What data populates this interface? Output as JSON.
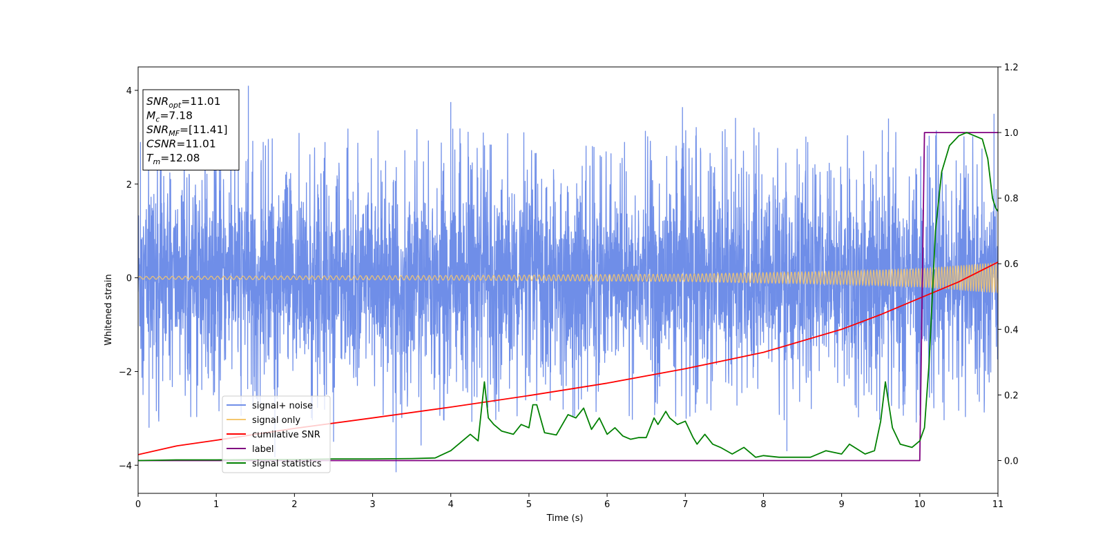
{
  "chart_data": {
    "type": "line",
    "xlabel": "Time (s)",
    "ylabel": "Whitened strain",
    "xlim": [
      0,
      11
    ],
    "ylim_left": [
      -4.6,
      4.5
    ],
    "ylim_right": [
      -0.1,
      1.2
    ],
    "x_ticks": [
      "0",
      "1",
      "2",
      "3",
      "4",
      "5",
      "6",
      "7",
      "8",
      "9",
      "10",
      "11"
    ],
    "y_ticks_left": [
      "4",
      "2",
      "0",
      "−2",
      "−4"
    ],
    "y_ticks_right": [
      "1.2",
      "1.0",
      "0.8",
      "0.6",
      "0.4",
      "0.2",
      "0.0"
    ],
    "grid": false,
    "legend_position": "lower-left",
    "info_box": {
      "position": "top-left",
      "lines": [
        {
          "sym": "SNR",
          "sub": "opt",
          "rest": "=11.01"
        },
        {
          "sym": "M",
          "sub": "c",
          "rest": "=7.18"
        },
        {
          "sym": "SNR",
          "sub": "MF",
          "rest": "=[11.41]"
        },
        {
          "sym": "CSNR",
          "sub": "",
          "rest": "=11.01"
        },
        {
          "sym": "T",
          "sub": "m",
          "rest": "=12.08"
        }
      ]
    },
    "series": [
      {
        "name": "signal+ noise",
        "axis": "left",
        "color": "#6f8ee8",
        "note": "dense noisy strain, roughly within -2 to +2.5 with spikes",
        "typical_range": [
          -2.2,
          2.3
        ],
        "spikes": [
          [
            1.41,
            4.1
          ],
          [
            3.3,
            -4.15
          ],
          [
            0.03,
            2.9
          ],
          [
            0.14,
            -3.2
          ],
          [
            1.6,
            2.9
          ],
          [
            4.0,
            3.75
          ],
          [
            8.3,
            -3.7
          ],
          [
            9.6,
            3.4
          ],
          [
            10.95,
            3.5
          ],
          [
            2.5,
            -3.5
          ]
        ]
      },
      {
        "name": "signal only",
        "axis": "left",
        "color": "#f5c76e",
        "note": "chirp whose envelope grows toward the merger",
        "envelope": [
          [
            0,
            0.03
          ],
          [
            4,
            0.05
          ],
          [
            7,
            0.08
          ],
          [
            9,
            0.14
          ],
          [
            10,
            0.2
          ],
          [
            11,
            0.33
          ]
        ]
      },
      {
        "name": "cumilative SNR",
        "axis": "right",
        "color": "#ff0000",
        "x": [
          0,
          0.5,
          1,
          2,
          3,
          4,
          5,
          6,
          7,
          8,
          9,
          9.5,
          10,
          10.5,
          11
        ],
        "y": [
          0.018,
          0.045,
          0.062,
          0.098,
          0.13,
          0.163,
          0.198,
          0.236,
          0.28,
          0.33,
          0.4,
          0.445,
          0.495,
          0.545,
          0.605
        ]
      },
      {
        "name": "label",
        "axis": "right",
        "color": "#800080",
        "x": [
          0,
          10,
          10.06,
          11
        ],
        "y": [
          0.0,
          0.0,
          1.0,
          1.0
        ]
      },
      {
        "name": "signal statistics",
        "axis": "right",
        "color": "#008000",
        "x": [
          0,
          0.5,
          1,
          1.5,
          2,
          2.5,
          3,
          3.5,
          3.8,
          4,
          4.15,
          4.25,
          4.35,
          4.43,
          4.48,
          4.55,
          4.65,
          4.8,
          4.9,
          5.0,
          5.05,
          5.1,
          5.2,
          5.35,
          5.5,
          5.6,
          5.7,
          5.8,
          5.9,
          6.0,
          6.1,
          6.2,
          6.3,
          6.4,
          6.5,
          6.6,
          6.65,
          6.75,
          6.8,
          6.9,
          7.0,
          7.1,
          7.15,
          7.25,
          7.35,
          7.45,
          7.6,
          7.75,
          7.9,
          8.0,
          8.2,
          8.4,
          8.6,
          8.8,
          9.0,
          9.1,
          9.3,
          9.42,
          9.5,
          9.56,
          9.65,
          9.75,
          9.9,
          10.0,
          10.06,
          10.12,
          10.2,
          10.28,
          10.38,
          10.5,
          10.6,
          10.7,
          10.8,
          10.87,
          10.93,
          10.97,
          11.0
        ],
        "y": [
          0.0,
          0.002,
          0.002,
          0.003,
          0.003,
          0.005,
          0.005,
          0.006,
          0.008,
          0.03,
          0.06,
          0.08,
          0.06,
          0.24,
          0.13,
          0.11,
          0.09,
          0.08,
          0.11,
          0.1,
          0.17,
          0.17,
          0.085,
          0.078,
          0.14,
          0.13,
          0.16,
          0.095,
          0.13,
          0.08,
          0.1,
          0.075,
          0.065,
          0.07,
          0.07,
          0.13,
          0.11,
          0.15,
          0.13,
          0.11,
          0.12,
          0.07,
          0.05,
          0.08,
          0.05,
          0.04,
          0.02,
          0.04,
          0.01,
          0.015,
          0.01,
          0.01,
          0.01,
          0.03,
          0.02,
          0.05,
          0.02,
          0.03,
          0.12,
          0.24,
          0.1,
          0.05,
          0.04,
          0.06,
          0.1,
          0.3,
          0.7,
          0.88,
          0.96,
          0.99,
          1.0,
          0.99,
          0.98,
          0.92,
          0.8,
          0.77,
          0.76
        ]
      }
    ]
  }
}
